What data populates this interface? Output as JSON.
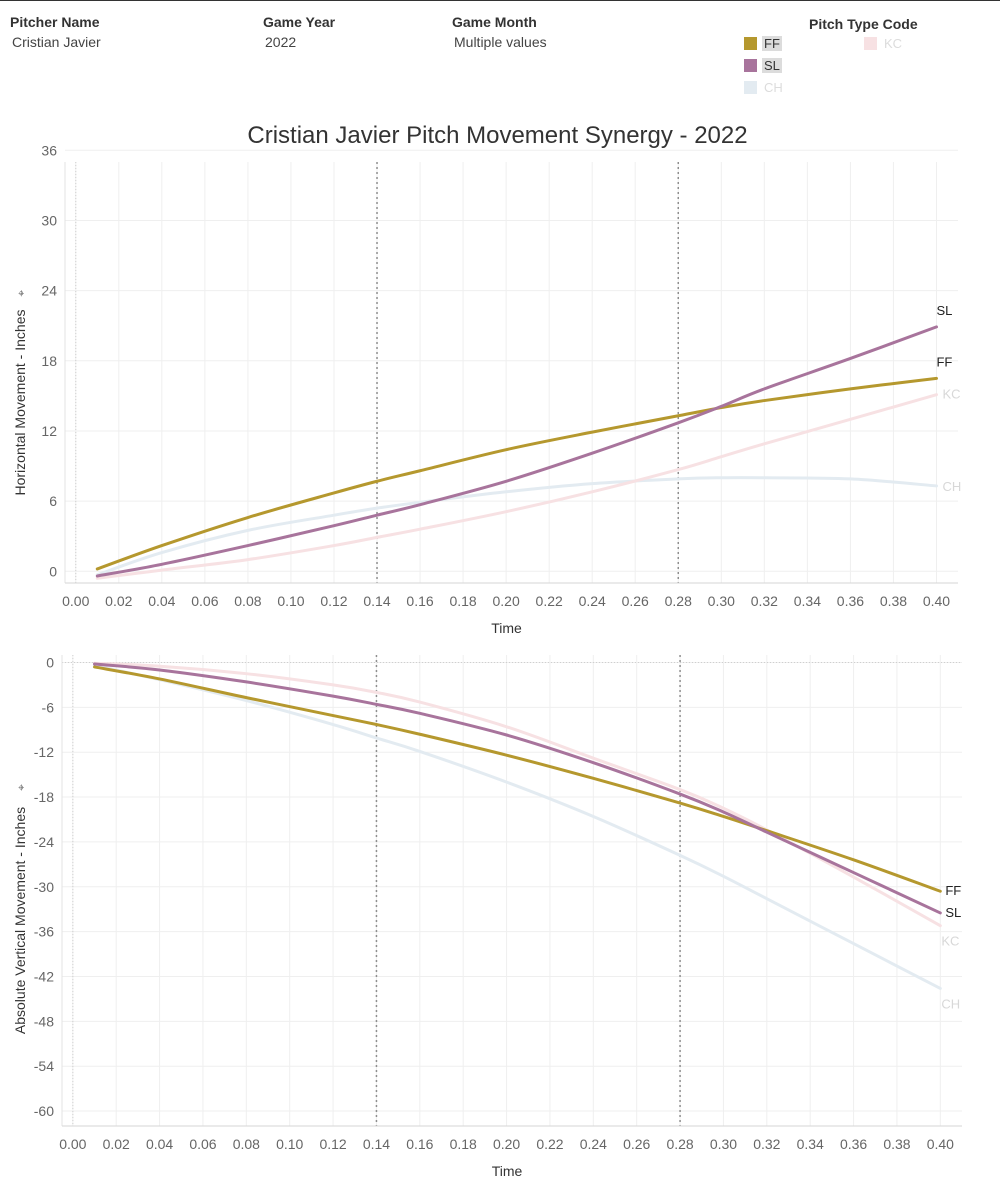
{
  "filters": {
    "pitcher": {
      "label": "Pitcher Name",
      "value": "Cristian Javier"
    },
    "year": {
      "label": "Game Year",
      "value": "2022"
    },
    "month": {
      "label": "Game Month",
      "value": "Multiple values"
    }
  },
  "legend": {
    "title": "Pitch Type Code",
    "items": [
      {
        "code": "FF",
        "color": "#b5982e",
        "active": true
      },
      {
        "code": "SL",
        "color": "#a8749c",
        "active": true
      },
      {
        "code": "CH",
        "color": "#e3ebf1",
        "active": false
      },
      {
        "code": "KC",
        "color": "#f7e1e3",
        "active": false
      }
    ]
  },
  "chart_data": [
    {
      "type": "line",
      "title": "Cristian Javier Pitch Movement Synergy - 2022",
      "xlabel": "Time",
      "ylabel": "Horizontal Movement - Inches",
      "xlim": [
        -0.005,
        0.41
      ],
      "ylim": [
        -1,
        35
      ],
      "xticks": [
        "0.00",
        "0.02",
        "0.04",
        "0.06",
        "0.08",
        "0.10",
        "0.12",
        "0.14",
        "0.16",
        "0.18",
        "0.20",
        "0.22",
        "0.24",
        "0.26",
        "0.28",
        "0.30",
        "0.32",
        "0.34",
        "0.36",
        "0.38",
        "0.40"
      ],
      "yticks": [
        0,
        6,
        12,
        18,
        24,
        30,
        36
      ],
      "reference_lines": [
        0.14,
        0.28
      ],
      "x": [
        0.01,
        0.04,
        0.08,
        0.12,
        0.14,
        0.16,
        0.2,
        0.24,
        0.28,
        0.3,
        0.32,
        0.36,
        0.4
      ],
      "series": [
        {
          "name": "FF",
          "color": "#b5982e",
          "values": [
            0.2,
            2.2,
            4.6,
            6.7,
            7.7,
            8.6,
            10.4,
            11.9,
            13.3,
            14.0,
            14.6,
            15.6,
            16.5
          ]
        },
        {
          "name": "SL",
          "color": "#a8749c",
          "values": [
            -0.4,
            0.6,
            2.2,
            3.9,
            4.8,
            5.7,
            7.7,
            10.1,
            12.7,
            14.1,
            15.6,
            18.2,
            20.9
          ]
        },
        {
          "name": "CH",
          "color": "#e3ebf1",
          "values": [
            -0.3,
            1.6,
            3.5,
            4.8,
            5.4,
            5.9,
            6.8,
            7.5,
            7.9,
            8.0,
            8.0,
            7.9,
            7.3
          ]
        },
        {
          "name": "KC",
          "color": "#f7e1e3",
          "values": [
            -0.6,
            0.1,
            1.0,
            2.2,
            2.9,
            3.6,
            5.1,
            6.8,
            8.7,
            9.8,
            10.9,
            13.0,
            15.1
          ]
        }
      ]
    },
    {
      "type": "line",
      "title": "",
      "xlabel": "Time",
      "ylabel": "Absolute Vertical Movement - Inches",
      "xlim": [
        -0.005,
        0.41
      ],
      "ylim": [
        -62,
        1
      ],
      "xticks": [
        "0.00",
        "0.02",
        "0.04",
        "0.06",
        "0.08",
        "0.10",
        "0.12",
        "0.14",
        "0.16",
        "0.18",
        "0.20",
        "0.22",
        "0.24",
        "0.26",
        "0.28",
        "0.30",
        "0.32",
        "0.34",
        "0.36",
        "0.38",
        "0.40"
      ],
      "yticks": [
        0,
        -6,
        -12,
        -18,
        -24,
        -30,
        -36,
        -42,
        -48,
        -54,
        -60
      ],
      "reference_lines": [
        0.14,
        0.28
      ],
      "x": [
        0.01,
        0.04,
        0.08,
        0.12,
        0.14,
        0.16,
        0.2,
        0.24,
        0.28,
        0.3,
        0.32,
        0.36,
        0.4
      ],
      "series": [
        {
          "name": "FF",
          "color": "#b5982e",
          "values": [
            -0.6,
            -2.2,
            -4.7,
            -7.1,
            -8.3,
            -9.6,
            -12.4,
            -15.5,
            -18.8,
            -20.6,
            -22.5,
            -26.4,
            -30.6
          ]
        },
        {
          "name": "SL",
          "color": "#a8749c",
          "values": [
            -0.2,
            -1.0,
            -2.6,
            -4.5,
            -5.6,
            -6.8,
            -9.7,
            -13.4,
            -17.6,
            -20.0,
            -22.7,
            -28.1,
            -33.5
          ]
        },
        {
          "name": "CH",
          "color": "#e3ebf1",
          "values": [
            -0.4,
            -2.3,
            -5.1,
            -8.3,
            -10.1,
            -11.9,
            -16.0,
            -20.6,
            -25.8,
            -28.6,
            -31.6,
            -37.6,
            -43.6
          ]
        },
        {
          "name": "KC",
          "color": "#f7e1e3",
          "values": [
            -0.1,
            -0.5,
            -1.5,
            -3.0,
            -4.0,
            -5.3,
            -8.6,
            -12.8,
            -17.0,
            -19.5,
            -22.4,
            -28.7,
            -35.2
          ]
        }
      ]
    }
  ]
}
